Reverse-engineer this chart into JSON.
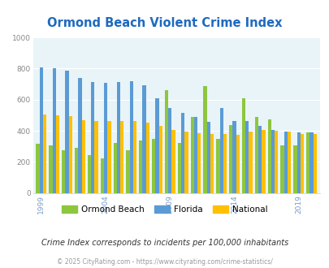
{
  "title": "Ormond Beach Violent Crime Index",
  "subtitle": "Crime Index corresponds to incidents per 100,000 inhabitants",
  "footer": "© 2025 CityRating.com - https://www.cityrating.com/crime-statistics/",
  "years": [
    1999,
    2000,
    2001,
    2002,
    2003,
    2004,
    2005,
    2006,
    2007,
    2008,
    2009,
    2010,
    2011,
    2012,
    2013,
    2014,
    2015,
    2016,
    2017,
    2018,
    2019,
    2020
  ],
  "tick_years": [
    1999,
    2004,
    2009,
    2014,
    2019
  ],
  "ormond_beach": [
    315,
    305,
    275,
    290,
    245,
    225,
    320,
    275,
    335,
    350,
    660,
    320,
    490,
    685,
    350,
    435,
    610,
    490,
    475,
    305,
    305,
    390
  ],
  "florida": [
    810,
    800,
    785,
    740,
    715,
    710,
    715,
    720,
    695,
    610,
    545,
    515,
    490,
    460,
    545,
    465,
    465,
    430,
    405,
    395,
    390,
    390
  ],
  "national": [
    505,
    500,
    495,
    470,
    465,
    465,
    465,
    465,
    455,
    430,
    405,
    395,
    385,
    380,
    380,
    375,
    395,
    405,
    400,
    395,
    380,
    380
  ],
  "bar_colors": {
    "ormond_beach": "#8dc63f",
    "florida": "#5b9bd5",
    "national": "#ffc000"
  },
  "bg_color": "#ddeef5",
  "plot_bg_color": "#e8f4f8",
  "ylim": [
    0,
    1000
  ],
  "yticks": [
    0,
    200,
    400,
    600,
    800,
    1000
  ],
  "title_color": "#1f6abf",
  "subtitle_color": "#333333",
  "footer_color": "#999999",
  "tick_color": "#888888",
  "xtick_color": "#7a9cc8",
  "legend_labels": [
    "Ormond Beach",
    "Florida",
    "National"
  ]
}
